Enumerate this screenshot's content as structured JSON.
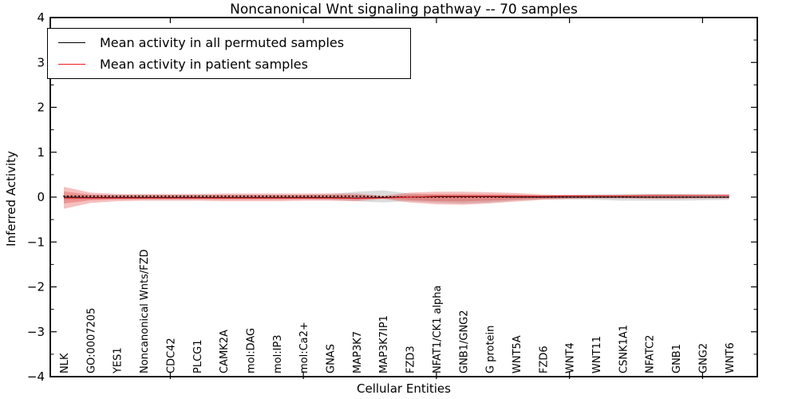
{
  "chart_data": {
    "type": "line",
    "title": "Noncanonical Wnt signaling pathway -- 70 samples",
    "xlabel": "Cellular Entities",
    "ylabel": "Inferred Activity",
    "ylim": [
      -4,
      4
    ],
    "y_tick_labels": [
      "4",
      "3",
      "2",
      "1",
      "0",
      "−1",
      "−2",
      "−3",
      "−4"
    ],
    "y_tick_values": [
      4,
      3,
      2,
      1,
      0,
      -1,
      -2,
      -3,
      -4
    ],
    "y_minor_tick_values": [
      3.5,
      2.5,
      1.5,
      0.5,
      -0.5,
      -1.5,
      -2.5,
      -3.5
    ],
    "grid": false,
    "legend_position": "upper left",
    "categories": [
      "NLK",
      "GO:0007205",
      "YES1",
      "Noncanonical Wnts/FZD",
      "CDC42",
      "PLCG1",
      "CAMK2A",
      "mol:DAG",
      "mol:IP3",
      "mol:Ca2+",
      "GNAS",
      "MAP3K7",
      "MAP3K7IP1",
      "FZD3",
      "NFAT1/CK1 alpha",
      "GNB1/GNG2",
      "G protein",
      "WNT5A",
      "FZD6",
      "WNT4",
      "WNT11",
      "CSNK1A1",
      "NFATC2",
      "GNB1",
      "GNG2",
      "WNT6"
    ],
    "major_xtick_indices": [
      4,
      9,
      14,
      19,
      24
    ],
    "legend": [
      {
        "label": "Mean activity in all permuted samples",
        "color": "#000000"
      },
      {
        "label": "Mean activity in patient samples",
        "color": "#ed1c24"
      }
    ],
    "colors": {
      "permuted_band": "rgba(130,130,130,0.28)",
      "patient_band": "rgba(225,60,55,0.32)",
      "permuted_line": "#000000",
      "patient_line": "#e31b23",
      "dotted_line": "#000000"
    },
    "series": [
      {
        "name": "permuted_band",
        "type": "band",
        "upper": [
          0.05,
          0.05,
          0.05,
          0.05,
          0.05,
          0.05,
          0.05,
          0.05,
          0.05,
          0.05,
          0.07,
          0.12,
          0.15,
          0.08,
          0.05,
          0.05,
          0.05,
          0.05,
          0.04,
          0.05,
          0.06,
          0.07,
          0.07,
          0.07,
          0.06,
          0.06
        ],
        "lower": [
          -0.06,
          -0.05,
          -0.05,
          -0.05,
          -0.05,
          -0.05,
          -0.05,
          -0.05,
          -0.05,
          -0.05,
          -0.06,
          -0.09,
          -0.12,
          -0.09,
          -0.12,
          -0.14,
          -0.12,
          -0.07,
          -0.05,
          -0.05,
          -0.06,
          -0.08,
          -0.08,
          -0.08,
          -0.07,
          -0.06
        ]
      },
      {
        "name": "patient_band",
        "type": "band",
        "upper": [
          0.23,
          0.1,
          0.07,
          0.07,
          0.07,
          0.07,
          0.08,
          0.08,
          0.08,
          0.08,
          0.08,
          0.08,
          0.03,
          0.1,
          0.12,
          0.12,
          0.11,
          0.09,
          0.06,
          0.04,
          0.03,
          0.03,
          0.04,
          0.04,
          0.03,
          0.03
        ],
        "lower": [
          -0.26,
          -0.13,
          -0.09,
          -0.08,
          -0.08,
          -0.08,
          -0.09,
          -0.09,
          -0.09,
          -0.08,
          -0.08,
          -0.09,
          -0.04,
          -0.12,
          -0.16,
          -0.17,
          -0.14,
          -0.1,
          -0.06,
          -0.04,
          -0.03,
          -0.03,
          -0.04,
          -0.04,
          -0.03,
          -0.03
        ]
      },
      {
        "name": "permuted_mean",
        "type": "line",
        "style": "solid",
        "values": [
          0.0,
          -0.01,
          -0.01,
          -0.01,
          -0.01,
          -0.01,
          -0.01,
          -0.01,
          -0.01,
          -0.01,
          -0.01,
          -0.02,
          -0.01,
          0.0,
          0.01,
          0.01,
          0.01,
          0.0,
          0.0,
          0.0,
          0.0,
          0.0,
          0.0,
          0.0,
          0.0,
          0.0
        ]
      },
      {
        "name": "permuted_dotted",
        "type": "line",
        "style": "dotted",
        "values": [
          0.02,
          0.02,
          0.02,
          0.02,
          0.02,
          0.02,
          0.02,
          0.02,
          0.02,
          0.02,
          0.02,
          0.02,
          0.01,
          0.0,
          0.0,
          0.0,
          0.0,
          0.0,
          0.0,
          0.0,
          0.0,
          0.0,
          0.0,
          0.0,
          0.0,
          0.0
        ]
      },
      {
        "name": "patient_mean",
        "type": "line",
        "style": "solid",
        "values": [
          -0.02,
          -0.02,
          -0.02,
          -0.02,
          -0.02,
          -0.02,
          -0.02,
          -0.02,
          -0.02,
          -0.02,
          -0.02,
          -0.03,
          -0.02,
          0.0,
          0.02,
          0.02,
          0.02,
          0.02,
          0.02,
          0.03,
          0.03,
          0.03,
          0.04,
          0.04,
          0.04,
          0.04
        ]
      }
    ]
  }
}
